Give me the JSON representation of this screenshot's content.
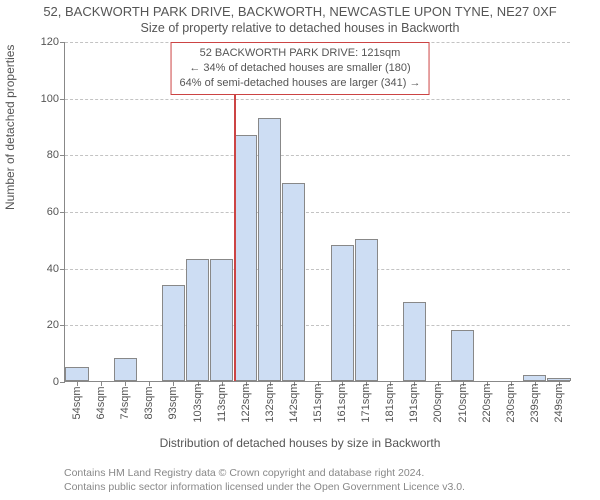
{
  "title": "52, BACKWORTH PARK DRIVE, BACKWORTH, NEWCASTLE UPON TYNE, NE27 0XF",
  "subtitle": "Size of property relative to detached houses in Backworth",
  "callout": {
    "line1": "52 BACKWORTH PARK DRIVE: 121sqm",
    "line2": "34% of detached houses are smaller (180)",
    "line3": "64% of semi-detached houses are larger (341)",
    "border_color": "#cc4444"
  },
  "chart": {
    "type": "histogram",
    "ylim": [
      0,
      120
    ],
    "ytick_step": 20,
    "ylabel": "Number of detached properties",
    "xlabel": "Distribution of detached houses by size in Backworth",
    "bar_fill": "#cdddf3",
    "bar_border": "#888888",
    "background_color": "#ffffff",
    "grid_dash": true,
    "marker_x_index": 7,
    "marker_color": "#cc4444",
    "categories": [
      "54sqm",
      "64sqm",
      "74sqm",
      "83sqm",
      "93sqm",
      "103sqm",
      "113sqm",
      "122sqm",
      "132sqm",
      "142sqm",
      "151sqm",
      "161sqm",
      "171sqm",
      "181sqm",
      "191sqm",
      "200sqm",
      "210sqm",
      "220sqm",
      "230sqm",
      "239sqm",
      "249sqm"
    ],
    "values": [
      5,
      0,
      8,
      0,
      34,
      43,
      43,
      87,
      93,
      70,
      0,
      48,
      50,
      0,
      28,
      0,
      18,
      0,
      0,
      2,
      1
    ],
    "label_fontsize": 12,
    "tick_fontsize": 11
  },
  "footnote": {
    "line1": "Contains HM Land Registry data © Crown copyright and database right 2024.",
    "line2": "Contains public sector information licensed under the Open Government Licence v3.0."
  }
}
